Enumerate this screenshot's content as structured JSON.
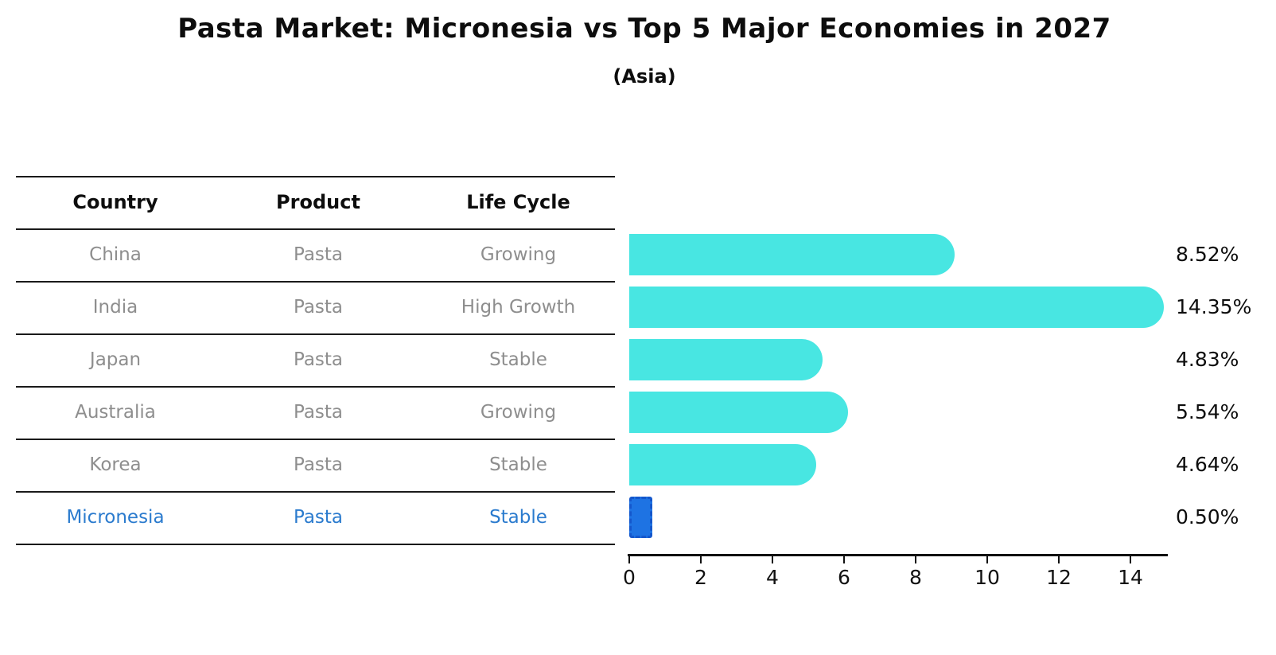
{
  "chart_data": {
    "type": "bar",
    "orientation": "horizontal",
    "title": "Pasta Market: Micronesia vs Top 5 Major Economies in 2027",
    "subtitle": "(Asia)",
    "categories": [
      "China",
      "India",
      "Japan",
      "Australia",
      "Korea",
      "Micronesia"
    ],
    "values": [
      8.52,
      14.35,
      4.83,
      5.54,
      4.64,
      0.5
    ],
    "value_labels": [
      "8.52%",
      "14.35%",
      "4.83%",
      "5.54%",
      "4.64%",
      "0.50%"
    ],
    "highlight_index": 5,
    "x_ticks": [
      0,
      2,
      4,
      6,
      8,
      10,
      12,
      14
    ],
    "xlim": [
      0,
      15.1
    ],
    "grid": false,
    "legend": null,
    "bar_color": "#48E6E2",
    "highlight_bar_color": "#1E73E3",
    "highlight_bar_border_color": "#1457CC",
    "value_label_color": "#0d0d0d",
    "axis_color": "#111111"
  },
  "table": {
    "headers": [
      "Country",
      "Product",
      "Life Cycle"
    ],
    "rows": [
      {
        "country": "China",
        "product": "Pasta",
        "life_cycle": "Growing",
        "highlighted": false
      },
      {
        "country": "India",
        "product": "Pasta",
        "life_cycle": "High Growth",
        "highlighted": false
      },
      {
        "country": "Japan",
        "product": "Pasta",
        "life_cycle": "Stable",
        "highlighted": false
      },
      {
        "country": "Australia",
        "product": "Pasta",
        "life_cycle": "Growing",
        "highlighted": false
      },
      {
        "country": "Korea",
        "product": "Pasta",
        "life_cycle": "Stable",
        "highlighted": false
      },
      {
        "country": "Micronesia",
        "product": "Pasta",
        "life_cycle": "Stable",
        "highlighted": true
      }
    ],
    "normal_text_color": "#8e8e8e",
    "highlight_text_color": "#2B7BCE"
  }
}
